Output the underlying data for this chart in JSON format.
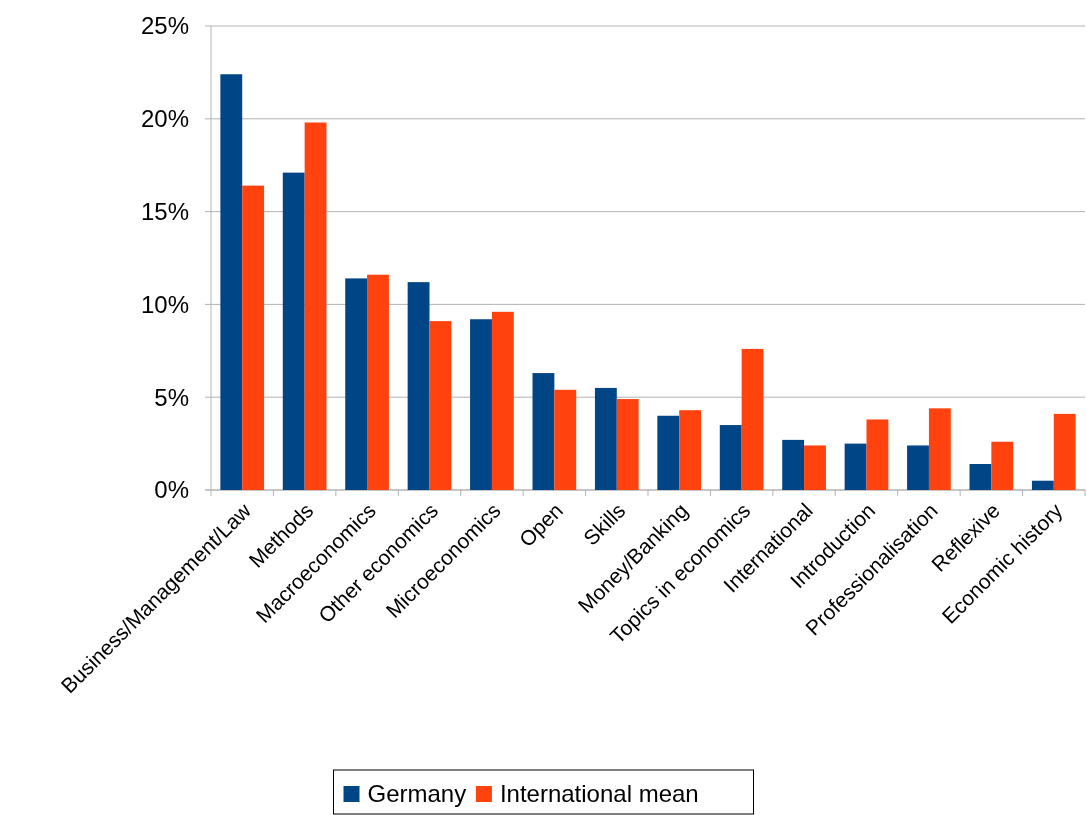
{
  "chart_data": {
    "type": "bar",
    "categories": [
      "Business/Management/Law",
      "Methods",
      "Macroeconomics",
      "Other economics",
      "Microeconomics",
      "Open",
      "Skills",
      "Money/Banking",
      "Topics in economics",
      "International",
      "Introduction",
      "Professionalisation",
      "Reflexive",
      "Economic history"
    ],
    "series": [
      {
        "name": "Germany",
        "color": "#004586",
        "values": [
          22.4,
          17.1,
          11.4,
          11.2,
          9.2,
          6.3,
          5.5,
          4.0,
          3.5,
          2.7,
          2.5,
          2.4,
          1.4,
          0.5
        ]
      },
      {
        "name": "International mean",
        "color": "#ff420e",
        "values": [
          16.4,
          19.8,
          11.6,
          9.1,
          9.6,
          5.4,
          4.9,
          4.3,
          7.6,
          2.4,
          3.8,
          4.4,
          2.6,
          4.1
        ]
      }
    ],
    "ylim": [
      0,
      25
    ],
    "yticks": [
      {
        "value": 0,
        "label": "0%"
      },
      {
        "value": 5,
        "label": "5%"
      },
      {
        "value": 10,
        "label": "10%"
      },
      {
        "value": 15,
        "label": "15%"
      },
      {
        "value": 20,
        "label": "20%"
      },
      {
        "value": 25,
        "label": "25%"
      }
    ],
    "grid": "y",
    "legend": "bottom"
  }
}
